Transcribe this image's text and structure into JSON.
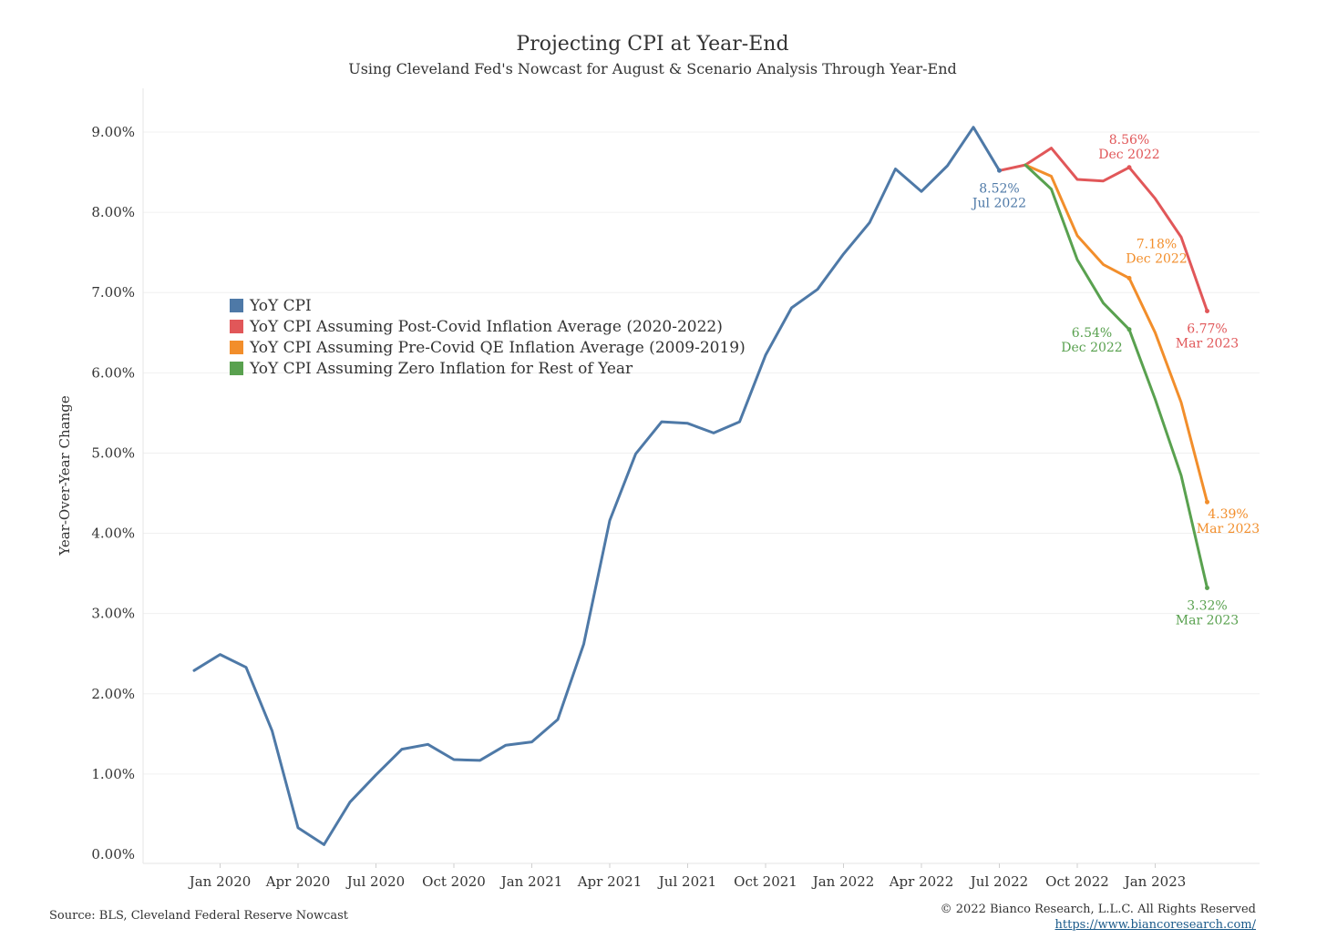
{
  "chart_data": {
    "type": "line",
    "title": "Projecting CPI at Year-End",
    "subtitle": "Using Cleveland Fed's Nowcast for August & Scenario Analysis Through Year-End",
    "ylabel": "Year-Over-Year Change",
    "ylim": [
      0,
      9.5
    ],
    "yticks": [
      0,
      1,
      2,
      3,
      4,
      5,
      6,
      7,
      8,
      9
    ],
    "ytick_labels": [
      "0.00%",
      "1.00%",
      "2.00%",
      "3.00%",
      "4.00%",
      "5.00%",
      "6.00%",
      "7.00%",
      "8.00%",
      "9.00%"
    ],
    "x_labels": [
      "Jan 2020",
      "Apr 2020",
      "Jul 2020",
      "Oct 2020",
      "Jan 2021",
      "Apr 2021",
      "Jul 2021",
      "Oct 2021",
      "Jan 2022",
      "Apr 2022",
      "Jul 2022",
      "Oct 2022",
      "Jan 2023"
    ],
    "x_label_months": [
      "2020-01",
      "2020-04",
      "2020-07",
      "2020-10",
      "2021-01",
      "2021-04",
      "2021-07",
      "2021-10",
      "2022-01",
      "2022-04",
      "2022-07",
      "2022-10",
      "2023-01"
    ],
    "x_range": [
      "2019-11",
      "2023-04"
    ],
    "series": [
      {
        "name": "YoY CPI",
        "color": "#4e79a7",
        "x": [
          "2019-12",
          "2020-01",
          "2020-02",
          "2020-03",
          "2020-04",
          "2020-05",
          "2020-06",
          "2020-07",
          "2020-08",
          "2020-09",
          "2020-10",
          "2020-11",
          "2020-12",
          "2021-01",
          "2021-02",
          "2021-03",
          "2021-04",
          "2021-05",
          "2021-06",
          "2021-07",
          "2021-08",
          "2021-09",
          "2021-10",
          "2021-11",
          "2021-12",
          "2022-01",
          "2022-02",
          "2022-03",
          "2022-04",
          "2022-05",
          "2022-06",
          "2022-07"
        ],
        "values": [
          2.29,
          2.49,
          2.33,
          1.54,
          0.33,
          0.12,
          0.65,
          0.99,
          1.31,
          1.37,
          1.18,
          1.17,
          1.36,
          1.4,
          1.68,
          2.62,
          4.16,
          4.99,
          5.39,
          5.37,
          5.25,
          5.39,
          6.22,
          6.81,
          7.04,
          7.48,
          7.87,
          8.54,
          8.26,
          8.58,
          9.06,
          8.52
        ]
      },
      {
        "name": "YoY CPI Assuming Post-Covid Inflation Average (2020-2022)",
        "color": "#e15759",
        "x": [
          "2022-07",
          "2022-08",
          "2022-09",
          "2022-10",
          "2022-11",
          "2022-12",
          "2023-01",
          "2023-02",
          "2023-03"
        ],
        "values": [
          8.52,
          8.59,
          8.8,
          8.41,
          8.39,
          8.56,
          8.17,
          7.69,
          6.77
        ]
      },
      {
        "name": "YoY CPI Assuming Pre-Covid QE Inflation Average (2009-2019)",
        "color": "#f28e2b",
        "x": [
          "2022-08",
          "2022-09",
          "2022-10",
          "2022-11",
          "2022-12",
          "2023-01",
          "2023-02",
          "2023-03"
        ],
        "values": [
          8.59,
          8.45,
          7.71,
          7.35,
          7.18,
          6.5,
          5.63,
          4.39
        ]
      },
      {
        "name": "YoY CPI Assuming Zero Inflation for Rest of Year",
        "color": "#59a14f",
        "x": [
          "2022-08",
          "2022-09",
          "2022-10",
          "2022-11",
          "2022-12",
          "2023-01",
          "2023-02",
          "2023-03"
        ],
        "values": [
          8.59,
          8.29,
          7.41,
          6.87,
          6.54,
          5.67,
          4.72,
          3.32
        ]
      }
    ],
    "annotations": [
      {
        "series": 0,
        "x": "2022-07",
        "value_text": "8.52%",
        "date_text": "Jul 2022",
        "position": "below"
      },
      {
        "series": 1,
        "x": "2022-12",
        "value_text": "8.56%",
        "date_text": "Dec 2022",
        "position": "above"
      },
      {
        "series": 1,
        "x": "2023-03",
        "value_text": "6.77%",
        "date_text": "Mar 2023",
        "position": "below"
      },
      {
        "series": 2,
        "x": "2022-12",
        "value_text": "7.18%",
        "date_text": "Dec 2022",
        "position": "above-right"
      },
      {
        "series": 2,
        "x": "2023-03",
        "value_text": "4.39%",
        "date_text": "Mar 2023",
        "position": "below-right"
      },
      {
        "series": 3,
        "x": "2022-12",
        "value_text": "6.54%",
        "date_text": "Dec 2022",
        "position": "left"
      },
      {
        "series": 3,
        "x": "2023-03",
        "value_text": "3.32%",
        "date_text": "Mar 2023",
        "position": "below"
      }
    ],
    "grid": true,
    "legend_position": "left-middle"
  },
  "footer": {
    "source": "Source: BLS, Cleveland Federal Reserve Nowcast",
    "copyright": "© 2022 Bianco Research, L.L.C. All Rights Reserved",
    "url": "https://www.biancoresearch.com/"
  }
}
